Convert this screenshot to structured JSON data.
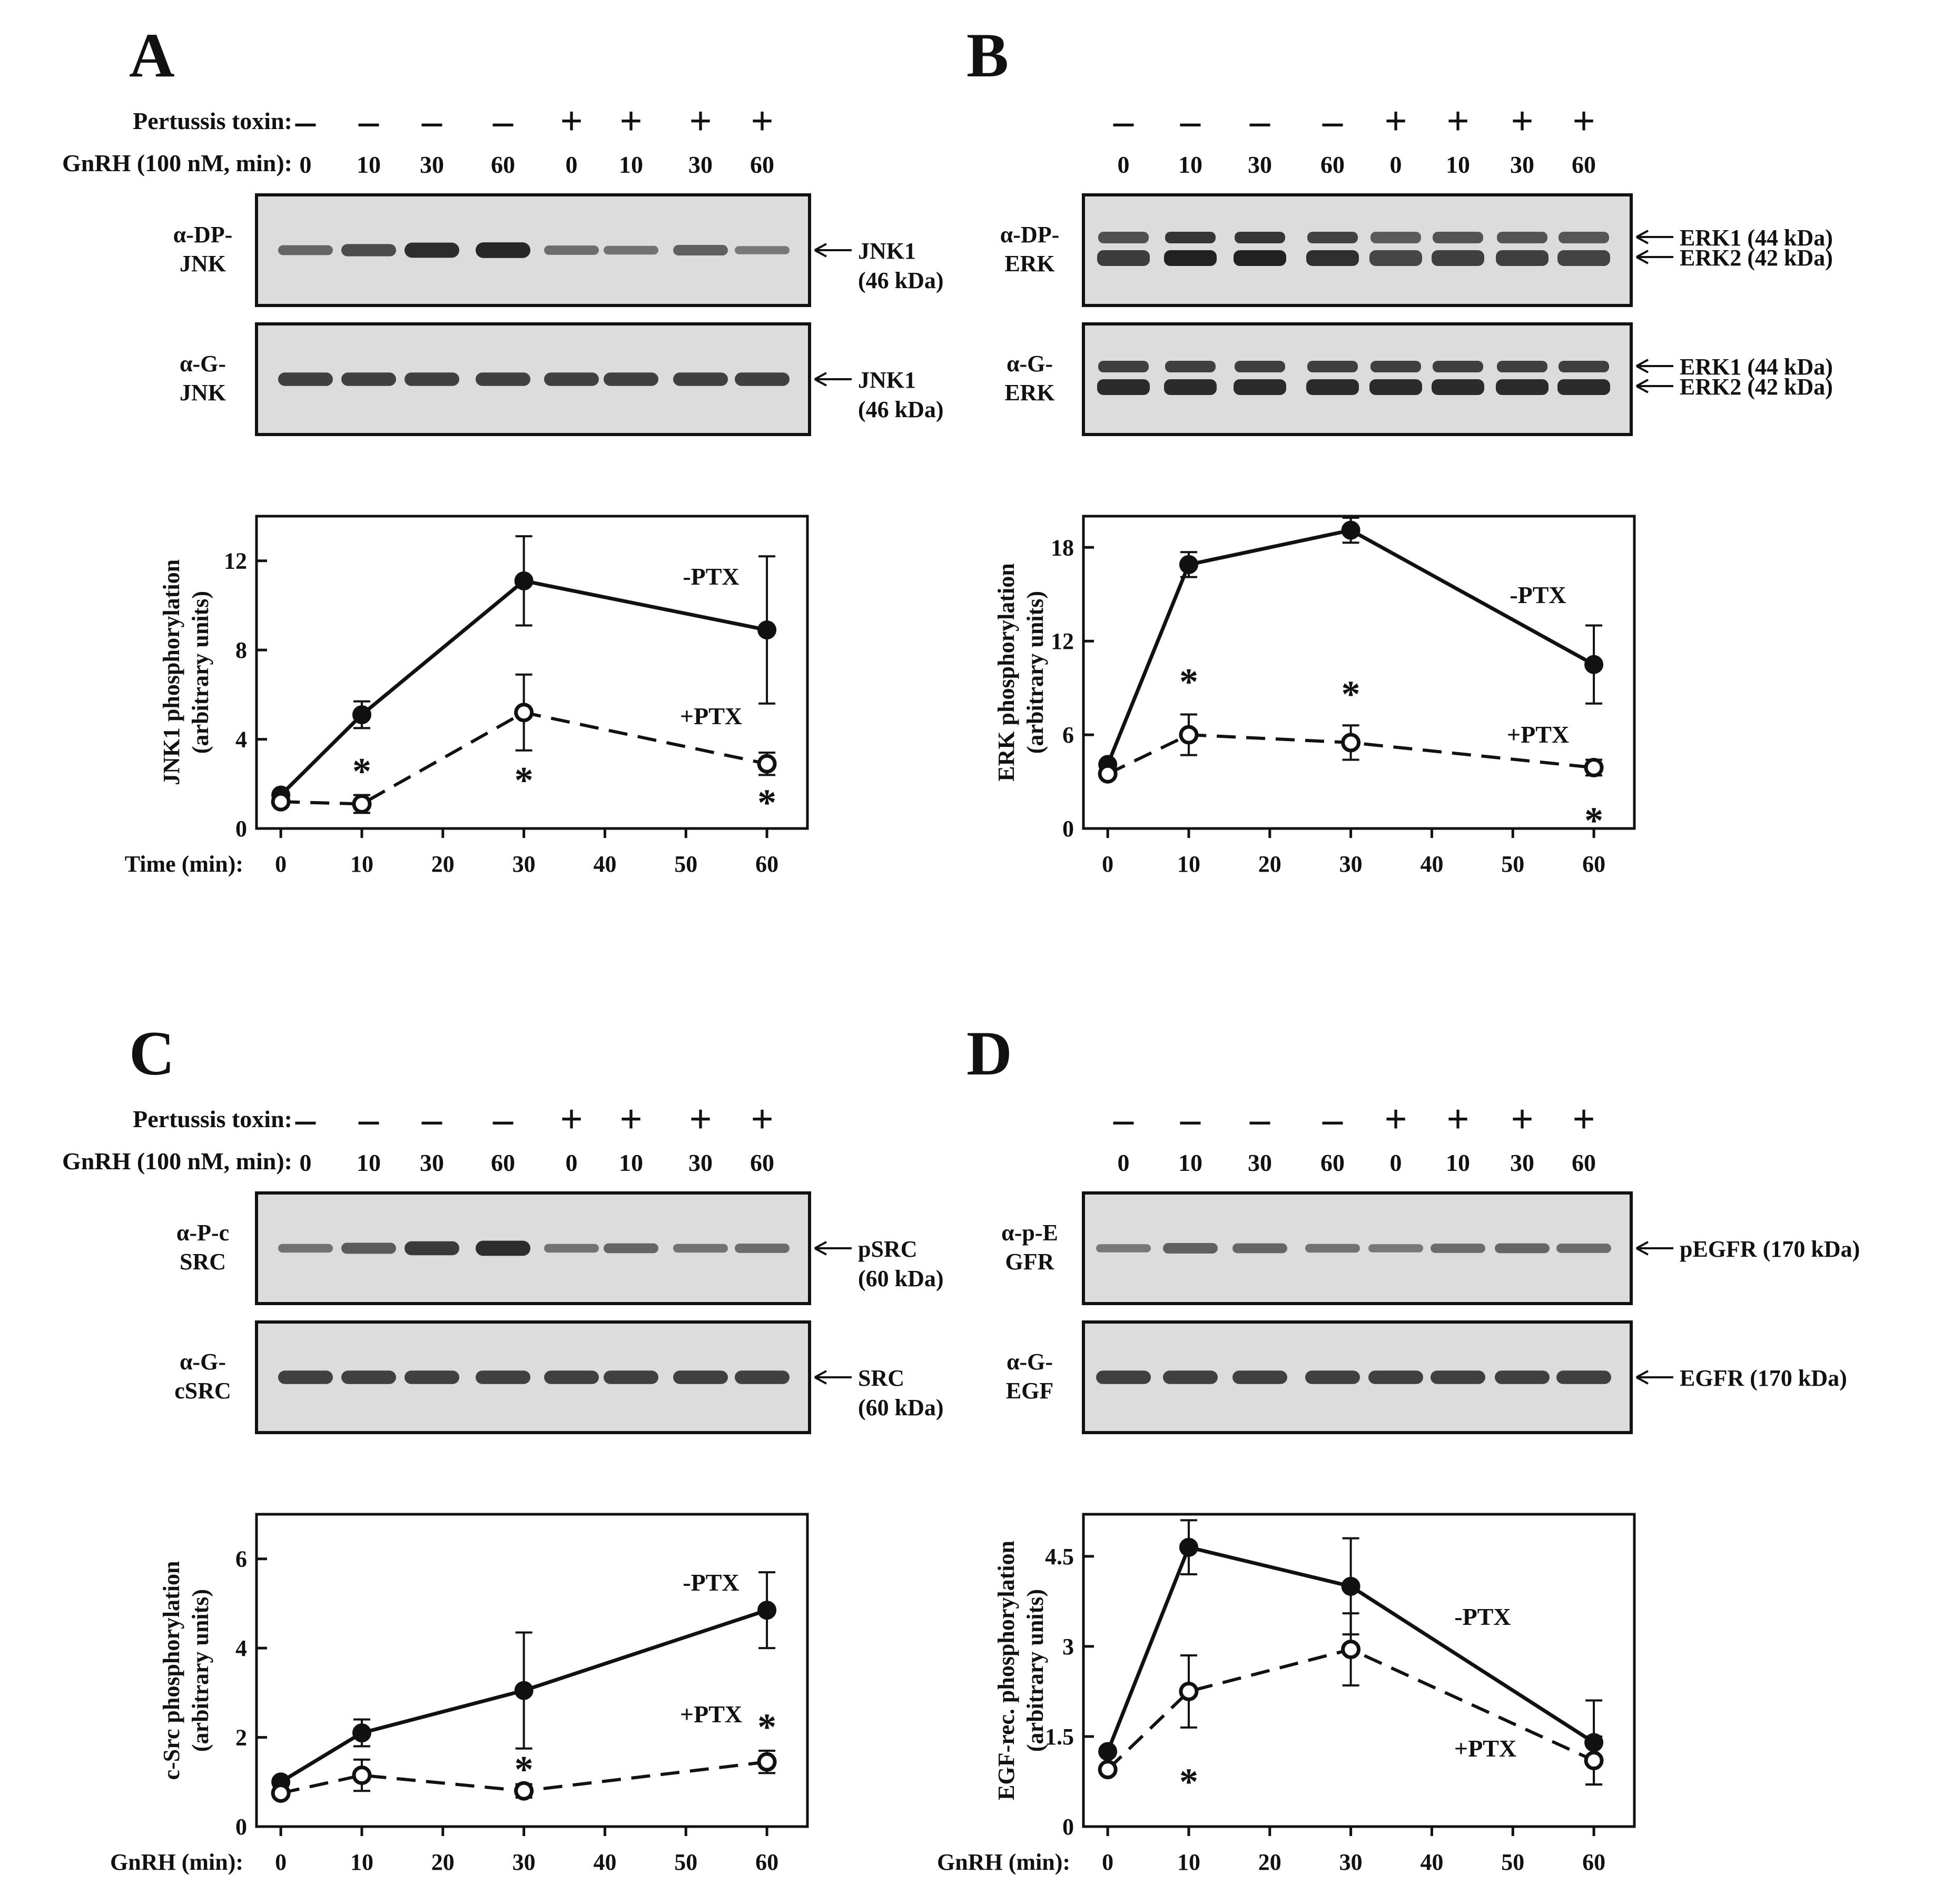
{
  "panels": [
    {
      "id": "A",
      "letter": "A",
      "treatment_row_label": "Pertussis toxin:",
      "time_row_label": "GnRH (100 nM, min):",
      "treatment_signs": [
        "–",
        "–",
        "–",
        "–",
        "+",
        "+",
        "+",
        "+"
      ],
      "lane_times": [
        "0",
        "10",
        "30",
        "60",
        "0",
        "10",
        "30",
        "60"
      ],
      "blots": [
        {
          "antibody_line1": "α-DP-",
          "antibody_line2": "JNK",
          "arrows": [
            {
              "line1": "JNK1",
              "line2": "(46 kDa)"
            }
          ],
          "bands": [
            [
              0.35
            ],
            [
              0.5
            ],
            [
              0.75
            ],
            [
              0.85
            ],
            [
              0.3
            ],
            [
              0.25
            ],
            [
              0.4
            ],
            [
              0.2
            ]
          ],
          "type": "single"
        },
        {
          "antibody_line1": "α-G-",
          "antibody_line2": "JNK",
          "arrows": [
            {
              "line1": "JNK1",
              "line2": "(46 kDa)"
            }
          ],
          "bands": [
            [
              0.7
            ],
            [
              0.7
            ],
            [
              0.7
            ],
            [
              0.7
            ],
            [
              0.7
            ],
            [
              0.7
            ],
            [
              0.6
            ],
            [
              0.6
            ]
          ],
          "type": "single"
        }
      ],
      "series_labels": {
        "minus": "-PTX",
        "plus": "+PTX"
      },
      "x_axis_prefix": "Time (min):"
    },
    {
      "id": "B",
      "letter": "B",
      "treatment_row_label": "",
      "time_row_label": "",
      "treatment_signs": [
        "–",
        "–",
        "–",
        "–",
        "+",
        "+",
        "+",
        "+"
      ],
      "lane_times": [
        "0",
        "10",
        "30",
        "60",
        "0",
        "10",
        "30",
        "60"
      ],
      "blots": [
        {
          "antibody_line1": "α-DP-",
          "antibody_line2": "ERK",
          "arrows": [
            {
              "line1": "ERK1 (44 kDa)",
              "line2": ""
            },
            {
              "line1": "ERK2 (42 kDa)",
              "line2": ""
            }
          ],
          "type": "double"
        },
        {
          "antibody_line1": "α-G-",
          "antibody_line2": "ERK",
          "arrows": [
            {
              "line1": "ERK1 (44 kDa)",
              "line2": ""
            },
            {
              "line1": "ERK2 (42 kDa)",
              "line2": ""
            }
          ],
          "type": "double"
        }
      ],
      "series_labels": {
        "minus": "-PTX",
        "plus": "+PTX"
      },
      "x_axis_prefix": ""
    },
    {
      "id": "C",
      "letter": "C",
      "treatment_row_label": "Pertussis toxin:",
      "time_row_label": "GnRH (100 nM, min):",
      "treatment_signs": [
        "–",
        "–",
        "–",
        "–",
        "+",
        "+",
        "+",
        "+"
      ],
      "lane_times": [
        "0",
        "10",
        "30",
        "60",
        "0",
        "10",
        "30",
        "60"
      ],
      "blots": [
        {
          "antibody_line1": "α-P-c",
          "antibody_line2": "SRC",
          "arrows": [
            {
              "line1": "pSRC",
              "line2": "(60 kDa)"
            }
          ],
          "type": "single"
        },
        {
          "antibody_line1": "α-G-",
          "antibody_line2": "cSRC",
          "arrows": [
            {
              "line1": "SRC",
              "line2": "(60 kDa)"
            }
          ],
          "type": "single"
        }
      ],
      "series_labels": {
        "minus": "-PTX",
        "plus": "+PTX"
      },
      "x_axis_prefix": "GnRH (min):"
    },
    {
      "id": "D",
      "letter": "D",
      "treatment_row_label": "",
      "time_row_label": "",
      "treatment_signs": [
        "–",
        "–",
        "–",
        "–",
        "+",
        "+",
        "+",
        "+"
      ],
      "lane_times": [
        "0",
        "10",
        "30",
        "60",
        "0",
        "10",
        "30",
        "60"
      ],
      "blots": [
        {
          "antibody_line1": "α-p-E",
          "antibody_line2": "GFR",
          "arrows": [
            {
              "line1": "pEGFR (170 kDa)",
              "line2": ""
            }
          ],
          "type": "single"
        },
        {
          "antibody_line1": "α-G-",
          "antibody_line2": "EGF",
          "arrows": [
            {
              "line1": "EGFR (170 kDa)",
              "line2": ""
            }
          ],
          "type": "single"
        }
      ],
      "series_labels": {
        "minus": "-PTX",
        "plus": "+PTX"
      },
      "x_axis_prefix": "GnRH (min):"
    }
  ],
  "chart_data": [
    {
      "panel": "A",
      "type": "line",
      "ylabel_line1": "JNK1 phosphorylation",
      "ylabel_line2": "(arbitrary units)",
      "xlabel": "Time (min):",
      "xlim": [
        -3,
        65
      ],
      "ylim": [
        0,
        14
      ],
      "xticks": [
        0,
        10,
        20,
        30,
        40,
        50,
        60
      ],
      "yticks": [
        0,
        4,
        8,
        12
      ],
      "series": [
        {
          "name": "-PTX",
          "style": "solid-filled",
          "x": [
            0,
            10,
            30,
            60
          ],
          "y": [
            1.5,
            5.1,
            11.1,
            8.9
          ],
          "err": [
            0.1,
            0.6,
            2.0,
            3.3
          ]
        },
        {
          "name": "+PTX",
          "style": "dashed-open",
          "x": [
            0,
            10,
            30,
            60
          ],
          "y": [
            1.2,
            1.1,
            5.2,
            2.9
          ],
          "err": [
            0.1,
            0.4,
            1.7,
            0.5
          ]
        }
      ],
      "asterisks": [
        {
          "x": 10,
          "y": 2.7
        },
        {
          "x": 30,
          "y": 2.3
        },
        {
          "x": 60,
          "y": 1.3
        }
      ]
    },
    {
      "panel": "B",
      "type": "line",
      "ylabel_line1": "ERK phosphorylation",
      "ylabel_line2": "(arbitrary units)",
      "xlabel": "",
      "xlim": [
        -3,
        65
      ],
      "ylim": [
        0,
        20
      ],
      "xticks": [
        0,
        10,
        20,
        30,
        40,
        50,
        60
      ],
      "yticks": [
        0,
        6,
        12,
        18
      ],
      "series": [
        {
          "name": "-PTX",
          "style": "solid-filled",
          "x": [
            0,
            10,
            30,
            60
          ],
          "y": [
            4.1,
            16.9,
            19.1,
            10.5
          ],
          "err": [
            0.2,
            0.8,
            0.8,
            2.5
          ]
        },
        {
          "name": "+PTX",
          "style": "dashed-open",
          "x": [
            0,
            10,
            30,
            60
          ],
          "y": [
            3.5,
            6.0,
            5.5,
            3.9
          ],
          "err": [
            0.2,
            1.3,
            1.1,
            0.5
          ]
        }
      ],
      "asterisks": [
        {
          "x": 10,
          "y": 9.6
        },
        {
          "x": 30,
          "y": 8.8
        },
        {
          "x": 60,
          "y": 0.7
        }
      ]
    },
    {
      "panel": "C",
      "type": "line",
      "ylabel_line1": "c-Src phosphorylation",
      "ylabel_line2": "(arbitrary units)",
      "xlabel": "GnRH (min):",
      "xlim": [
        -3,
        65
      ],
      "ylim": [
        0,
        7
      ],
      "xticks": [
        0,
        10,
        20,
        30,
        40,
        50,
        60
      ],
      "yticks": [
        0,
        2,
        4,
        6
      ],
      "series": [
        {
          "name": "-PTX",
          "style": "solid-filled",
          "x": [
            0,
            10,
            30,
            60
          ],
          "y": [
            1.0,
            2.1,
            3.05,
            4.85
          ],
          "err": [
            0.05,
            0.3,
            1.3,
            0.85
          ]
        },
        {
          "name": "+PTX",
          "style": "dashed-open",
          "x": [
            0,
            10,
            30,
            60
          ],
          "y": [
            0.75,
            1.15,
            0.8,
            1.45
          ],
          "err": [
            0.05,
            0.35,
            0.15,
            0.25
          ]
        }
      ],
      "asterisks": [
        {
          "x": 30,
          "y": 1.35
        },
        {
          "x": 60,
          "y": 2.3
        }
      ]
    },
    {
      "panel": "D",
      "type": "line",
      "ylabel_line1": "EGF-rec. phosphorylation",
      "ylabel_line2": "(arbitrary units)",
      "xlabel": "GnRH (min):",
      "xlim": [
        -3,
        65
      ],
      "ylim": [
        0,
        5.2
      ],
      "xticks": [
        0,
        10,
        20,
        30,
        40,
        50,
        60
      ],
      "yticks": [
        0,
        1.5,
        3,
        4.5
      ],
      "ytick_labels": [
        "0",
        "1.5",
        "3",
        "4.5"
      ],
      "series": [
        {
          "name": "-PTX",
          "style": "solid-filled",
          "x": [
            0,
            10,
            30,
            60
          ],
          "y": [
            1.25,
            4.65,
            4.0,
            1.4
          ],
          "err": [
            0.05,
            0.45,
            0.8,
            0.7
          ]
        },
        {
          "name": "+PTX",
          "style": "dashed-open",
          "x": [
            0,
            10,
            30,
            60
          ],
          "y": [
            0.95,
            2.25,
            2.95,
            1.1
          ],
          "err": [
            0.05,
            0.6,
            0.6,
            0.4
          ]
        }
      ],
      "asterisks": [
        {
          "x": 10,
          "y": 0.8
        }
      ]
    }
  ]
}
